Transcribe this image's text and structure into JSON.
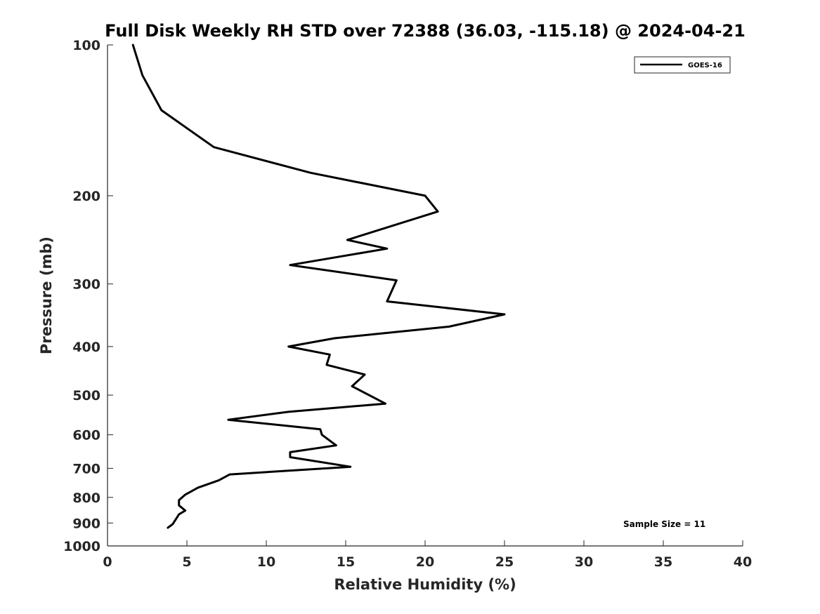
{
  "chart_data": {
    "type": "line",
    "title": "Full Disk Weekly RH STD over 72388 (36.03, -115.18) @ 2024-04-21",
    "xlabel": "Relative Humidity (%)",
    "ylabel": "Pressure (mb)",
    "xlim": [
      0,
      40
    ],
    "ylim": [
      100,
      1000
    ],
    "yscale": "log",
    "y_reversed": true,
    "x_ticks": [
      "0",
      "5",
      "10",
      "15",
      "20",
      "25",
      "30",
      "35",
      "40"
    ],
    "y_ticks": [
      "100",
      "200",
      "300",
      "400",
      "500",
      "600",
      "700",
      "800",
      "900",
      "1000"
    ],
    "grid": false,
    "legend_position": "top-right",
    "series": [
      {
        "name": "GOES-16",
        "color": "#000000",
        "x": [
          1.6,
          2.2,
          3.4,
          6.7,
          12.8,
          20.0,
          20.8,
          15.1,
          17.6,
          11.5,
          18.2,
          17.6,
          25.0,
          21.5,
          14.3,
          11.4,
          14.0,
          13.8,
          16.2,
          15.4,
          17.5,
          11.4,
          7.6,
          13.4,
          13.5,
          14.4,
          11.5,
          11.5,
          15.3,
          7.7,
          7.0,
          5.7,
          4.9,
          4.5,
          4.5,
          4.9,
          4.5,
          4.3,
          4.1,
          3.8
        ],
        "y": [
          100,
          115,
          135,
          160,
          180,
          200,
          215,
          245,
          255,
          275,
          295,
          325,
          345,
          365,
          385,
          400,
          415,
          435,
          455,
          480,
          520,
          540,
          560,
          585,
          600,
          630,
          650,
          665,
          695,
          720,
          740,
          765,
          790,
          810,
          830,
          850,
          865,
          885,
          905,
          920
        ]
      }
    ],
    "annotations": [
      "Sample Size = 11"
    ]
  }
}
